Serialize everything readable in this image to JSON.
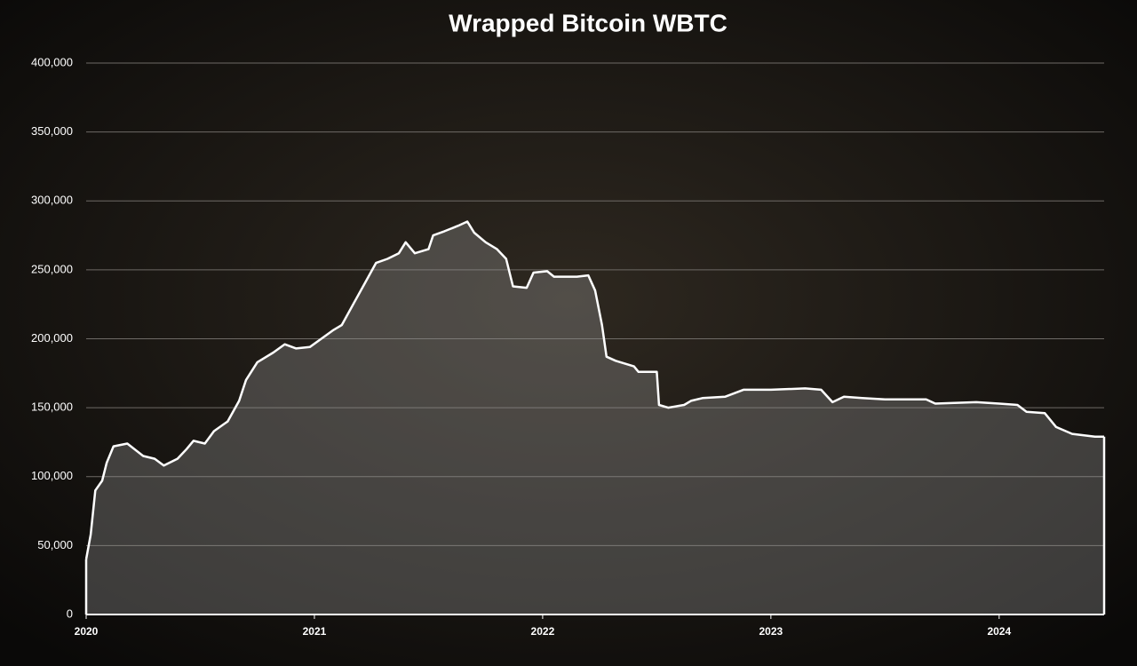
{
  "chart_data": {
    "type": "area",
    "title": "Wrapped Bitcoin WBTC",
    "x": [
      2020.0,
      2020.02,
      2020.04,
      2020.07,
      2020.09,
      2020.12,
      2020.18,
      2020.25,
      2020.3,
      2020.34,
      2020.4,
      2020.44,
      2020.47,
      2020.52,
      2020.56,
      2020.62,
      2020.67,
      2020.7,
      2020.75,
      2020.82,
      2020.87,
      2020.92,
      2020.98,
      2021.03,
      2021.08,
      2021.12,
      2021.17,
      2021.22,
      2021.27,
      2021.32,
      2021.37,
      2021.4,
      2021.44,
      2021.5,
      2021.52,
      2021.57,
      2021.63,
      2021.67,
      2021.7,
      2021.75,
      2021.8,
      2021.84,
      2021.87,
      2021.93,
      2021.96,
      2022.02,
      2022.05,
      2022.15,
      2022.2,
      2022.23,
      2022.26,
      2022.28,
      2022.32,
      2022.4,
      2022.42,
      2022.5,
      2022.51,
      2022.55,
      2022.62,
      2022.65,
      2022.7,
      2022.8,
      2022.88,
      2023.0,
      2023.15,
      2023.22,
      2023.27,
      2023.32,
      2023.4,
      2023.5,
      2023.68,
      2023.72,
      2023.9,
      2024.0,
      2024.08,
      2024.12,
      2024.2,
      2024.25,
      2024.32,
      2024.42,
      2024.46
    ],
    "values": [
      40000,
      58000,
      90000,
      97000,
      110000,
      122000,
      124000,
      115000,
      113000,
      108000,
      113000,
      120000,
      126000,
      124000,
      133000,
      140000,
      155000,
      170000,
      183000,
      190000,
      196000,
      193000,
      194000,
      200000,
      206000,
      210000,
      225000,
      240000,
      255000,
      258000,
      262000,
      270000,
      262000,
      265000,
      275000,
      278000,
      282000,
      285000,
      277000,
      270000,
      265000,
      258000,
      238000,
      237000,
      248000,
      249000,
      245000,
      245000,
      246000,
      235000,
      210000,
      187000,
      184000,
      180000,
      176000,
      176000,
      152000,
      150000,
      152000,
      155000,
      157000,
      158000,
      163000,
      163000,
      164000,
      163000,
      154000,
      158000,
      157000,
      156000,
      156000,
      153000,
      154000,
      153000,
      152000,
      147000,
      146000,
      136000,
      131000,
      129000,
      129000
    ],
    "color": "#ffffff",
    "xlim": [
      2020,
      2024.46
    ],
    "xticks": [
      2020,
      2021,
      2022,
      2023,
      2024
    ],
    "ylim": [
      0,
      400000
    ],
    "yticks": [
      0,
      {
        "value": 50000,
        "label": "50,000"
      },
      {
        "value": 100000,
        "label": "100,000"
      },
      {
        "value": 150000,
        "label": "150,000"
      },
      {
        "value": 200000,
        "label": "200,000"
      },
      {
        "value": 250000,
        "label": "250,000"
      },
      {
        "value": 300000,
        "label": "300,000"
      },
      {
        "value": 350000,
        "label": "350,000"
      },
      {
        "value": 400000,
        "label": "400,000"
      }
    ],
    "grid": true
  }
}
